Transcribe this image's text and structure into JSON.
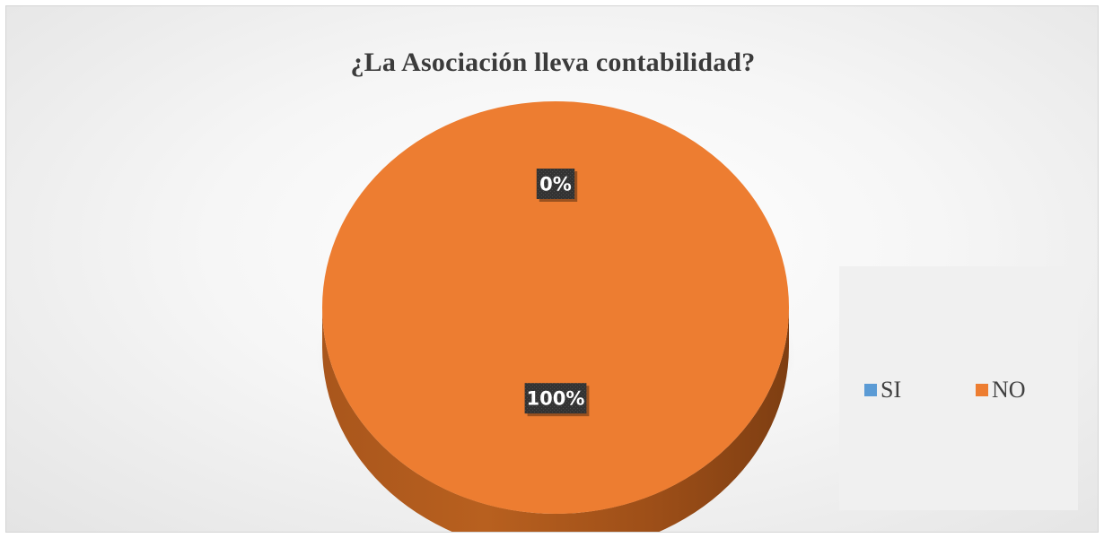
{
  "chart_data": {
    "type": "pie",
    "title": "¿La Asociación lleva contabilidad?",
    "categories": [
      "SI",
      "NO"
    ],
    "values": [
      0,
      100
    ],
    "unit": "%",
    "data_labels": [
      "0%",
      "100%"
    ],
    "colors": [
      "#5b9bd5",
      "#ed7d31"
    ],
    "legend_position": "right",
    "style": "3d"
  }
}
